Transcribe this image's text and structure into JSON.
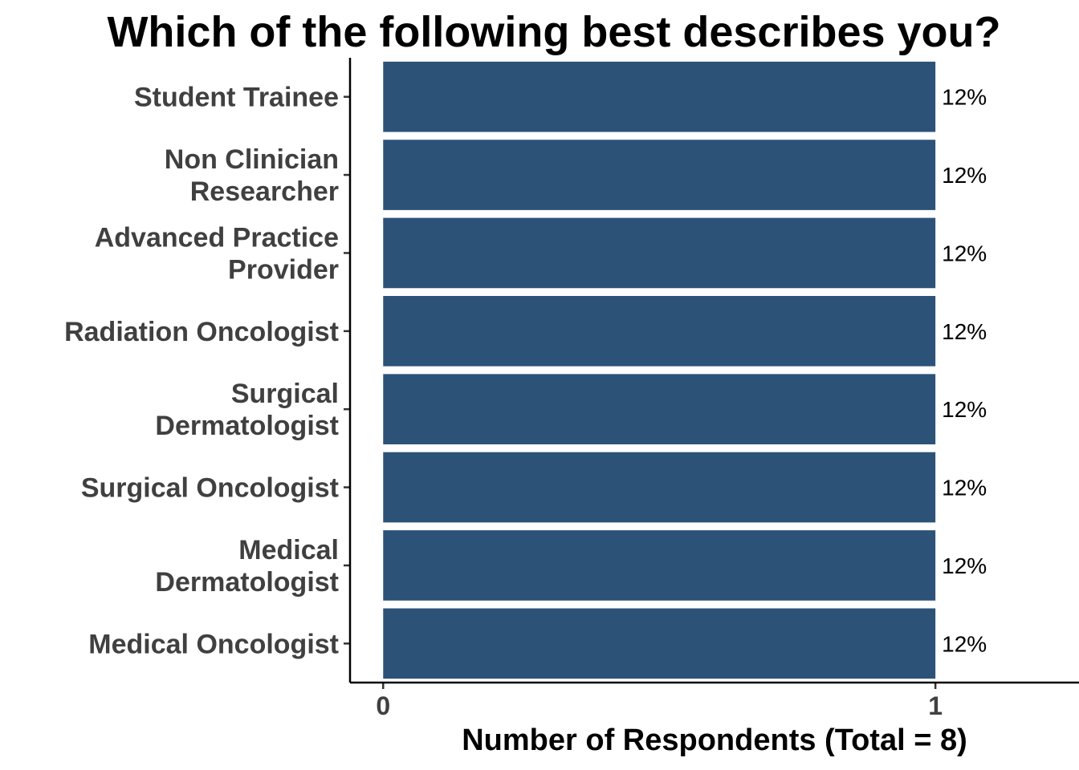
{
  "chart_data": {
    "type": "bar",
    "orientation": "horizontal",
    "title": "Which of the following best describes you?",
    "xlabel": "Number of Respondents (Total = 8)",
    "ylabel": "",
    "categories": [
      "Student Trainee",
      "Non Clinician\nResearcher",
      "Advanced Practice\nProvider",
      "Radiation Oncologist",
      "Surgical\nDermatologist",
      "Surgical Oncologist",
      "Medical\nDermatologist",
      "Medical Oncologist"
    ],
    "values": [
      1,
      1,
      1,
      1,
      1,
      1,
      1,
      1
    ],
    "data_labels": [
      "12%",
      "12%",
      "12%",
      "12%",
      "12%",
      "12%",
      "12%",
      "12%"
    ],
    "xticks": [
      "0",
      "1"
    ],
    "xlim": [
      -0.06,
      1.26
    ],
    "bar_color": "#2c5278",
    "grid": false,
    "legend": "none"
  }
}
